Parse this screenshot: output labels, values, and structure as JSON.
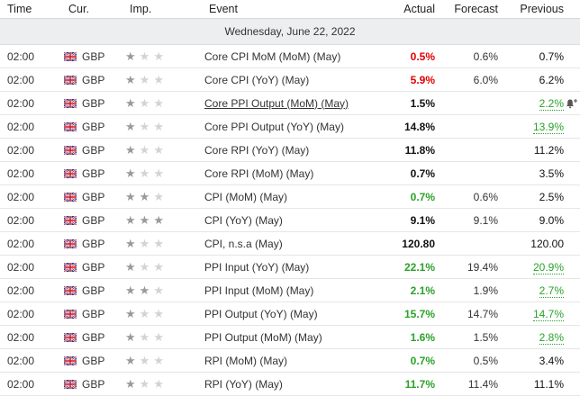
{
  "headers": {
    "time": "Time",
    "currency": "Cur.",
    "importance": "Imp.",
    "event": "Event",
    "actual": "Actual",
    "forecast": "Forecast",
    "previous": "Previous"
  },
  "date_label": "Wednesday, June 22, 2022",
  "colors": {
    "red": "#e20000",
    "green": "#2aa22a"
  },
  "rows": [
    {
      "time": "02:00",
      "currency": "GBP",
      "importance": 1,
      "event": "Core CPI MoM (MoM) (May)",
      "actual": "0.5%",
      "actual_color": "red",
      "forecast": "0.6%",
      "previous": "0.7%",
      "previous_color": "black"
    },
    {
      "time": "02:00",
      "currency": "GBP",
      "importance": 1,
      "event": "Core CPI (YoY) (May)",
      "actual": "5.9%",
      "actual_color": "red",
      "forecast": "6.0%",
      "previous": "6.2%",
      "previous_color": "black"
    },
    {
      "time": "02:00",
      "currency": "GBP",
      "importance": 1,
      "event": "Core PPI Output (MoM) (May)",
      "actual": "1.5%",
      "actual_color": "black",
      "forecast": "",
      "previous": "2.2%",
      "previous_color": "green",
      "link": true,
      "bell": true
    },
    {
      "time": "02:00",
      "currency": "GBP",
      "importance": 1,
      "event": "Core PPI Output (YoY) (May)",
      "actual": "14.8%",
      "actual_color": "black",
      "forecast": "",
      "previous": "13.9%",
      "previous_color": "green"
    },
    {
      "time": "02:00",
      "currency": "GBP",
      "importance": 1,
      "event": "Core RPI (YoY) (May)",
      "actual": "11.8%",
      "actual_color": "black",
      "forecast": "",
      "previous": "11.2%",
      "previous_color": "black"
    },
    {
      "time": "02:00",
      "currency": "GBP",
      "importance": 1,
      "event": "Core RPI (MoM) (May)",
      "actual": "0.7%",
      "actual_color": "black",
      "forecast": "",
      "previous": "3.5%",
      "previous_color": "black"
    },
    {
      "time": "02:00",
      "currency": "GBP",
      "importance": 2,
      "event": "CPI (MoM) (May)",
      "actual": "0.7%",
      "actual_color": "green",
      "forecast": "0.6%",
      "previous": "2.5%",
      "previous_color": "black"
    },
    {
      "time": "02:00",
      "currency": "GBP",
      "importance": 3,
      "event": "CPI (YoY) (May)",
      "actual": "9.1%",
      "actual_color": "black",
      "forecast": "9.1%",
      "previous": "9.0%",
      "previous_color": "black"
    },
    {
      "time": "02:00",
      "currency": "GBP",
      "importance": 1,
      "event": "CPI, n.s.a (May)",
      "actual": "120.80",
      "actual_color": "black",
      "forecast": "",
      "previous": "120.00",
      "previous_color": "black"
    },
    {
      "time": "02:00",
      "currency": "GBP",
      "importance": 1,
      "event": "PPI Input (YoY) (May)",
      "actual": "22.1%",
      "actual_color": "green",
      "forecast": "19.4%",
      "previous": "20.9%",
      "previous_color": "green"
    },
    {
      "time": "02:00",
      "currency": "GBP",
      "importance": 2,
      "event": "PPI Input (MoM) (May)",
      "actual": "2.1%",
      "actual_color": "green",
      "forecast": "1.9%",
      "previous": "2.7%",
      "previous_color": "green"
    },
    {
      "time": "02:00",
      "currency": "GBP",
      "importance": 1,
      "event": "PPI Output (YoY) (May)",
      "actual": "15.7%",
      "actual_color": "green",
      "forecast": "14.7%",
      "previous": "14.7%",
      "previous_color": "green"
    },
    {
      "time": "02:00",
      "currency": "GBP",
      "importance": 1,
      "event": "PPI Output (MoM) (May)",
      "actual": "1.6%",
      "actual_color": "green",
      "forecast": "1.5%",
      "previous": "2.8%",
      "previous_color": "green"
    },
    {
      "time": "02:00",
      "currency": "GBP",
      "importance": 1,
      "event": "RPI (MoM) (May)",
      "actual": "0.7%",
      "actual_color": "green",
      "forecast": "0.5%",
      "previous": "3.4%",
      "previous_color": "black"
    },
    {
      "time": "02:00",
      "currency": "GBP",
      "importance": 1,
      "event": "RPI (YoY) (May)",
      "actual": "11.7%",
      "actual_color": "green",
      "forecast": "11.4%",
      "previous": "11.1%",
      "previous_color": "black"
    }
  ]
}
